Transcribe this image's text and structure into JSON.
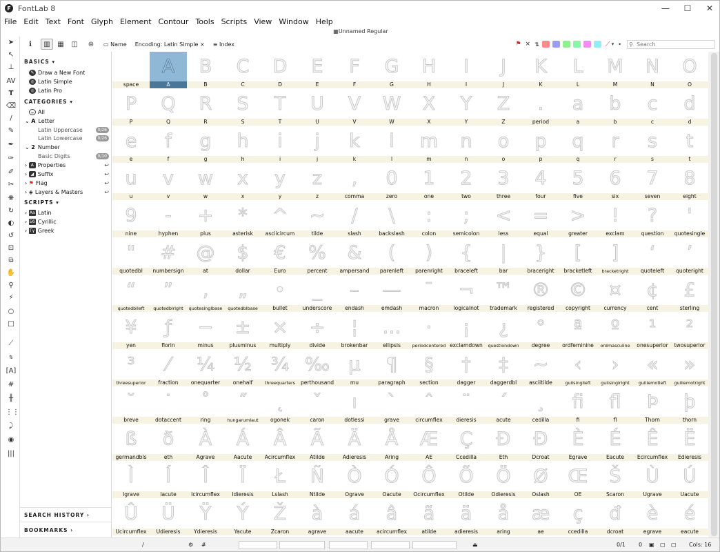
{
  "app": {
    "title": "FontLab 8",
    "logo_letter": "F",
    "doc_title": "Unnamed Regular"
  },
  "window_controls": [
    "—",
    "☐",
    "✕"
  ],
  "menu": [
    "File",
    "Edit",
    "Text",
    "Font",
    "Glyph",
    "Element",
    "Contour",
    "Tools",
    "Scripts",
    "View",
    "Window",
    "Help"
  ],
  "toolbar": {
    "info": "i",
    "name_label": "Name",
    "encoding_label": "Encoding: Latin Simple",
    "close_x": "×",
    "index_label": "Index",
    "search_placeholder": "Search"
  },
  "swatches": [
    "#f78a8a",
    "#9b9bf8",
    "#90f090",
    "#8af5a8",
    "#f18ef1",
    "#8ef0f5"
  ],
  "sidebar": {
    "basics_header": "BASICS",
    "basics": [
      "Draw a New Font",
      "Latin Simple",
      "Latin Pro"
    ],
    "categories_header": "CATEGORIES",
    "categories": [
      {
        "label": "All",
        "badge": ""
      },
      {
        "label": "Letter",
        "badge": ""
      },
      {
        "label": "Latin Uppercase",
        "badge": "0/26"
      },
      {
        "label": "Latin Lowercase",
        "badge": "0/26"
      },
      {
        "label": "Number",
        "badge": ""
      },
      {
        "label": "Basic Digits",
        "badge": "0/10"
      },
      {
        "label": "Properties",
        "badge": ""
      },
      {
        "label": "Suffix",
        "badge": ""
      },
      {
        "label": "Flag",
        "badge": ""
      },
      {
        "label": "Layers & Masters",
        "badge": ""
      }
    ],
    "scripts_header": "SCRIPTS",
    "scripts": [
      "Latin",
      "Cyrillic",
      "Greek"
    ],
    "search_history": "SEARCH HISTORY",
    "bookmarks": "BOOKMARKS"
  },
  "glyphs": [
    [
      "",
      "space"
    ],
    [
      "A",
      "A"
    ],
    [
      "B",
      "B"
    ],
    [
      "C",
      "C"
    ],
    [
      "D",
      "D"
    ],
    [
      "E",
      "E"
    ],
    [
      "F",
      "F"
    ],
    [
      "G",
      "G"
    ],
    [
      "H",
      "H"
    ],
    [
      "I",
      "I"
    ],
    [
      "J",
      "J"
    ],
    [
      "K",
      "K"
    ],
    [
      "L",
      "L"
    ],
    [
      "M",
      "M"
    ],
    [
      "N",
      "N"
    ],
    [
      "O",
      "O"
    ],
    [
      "P",
      "P"
    ],
    [
      "Q",
      "Q"
    ],
    [
      "R",
      "R"
    ],
    [
      "S",
      "S"
    ],
    [
      "T",
      "T"
    ],
    [
      "U",
      "U"
    ],
    [
      "V",
      "V"
    ],
    [
      "W",
      "W"
    ],
    [
      "X",
      "X"
    ],
    [
      "Y",
      "Y"
    ],
    [
      "Z",
      "Z"
    ],
    [
      ".",
      "period"
    ],
    [
      "a",
      "a"
    ],
    [
      "b",
      "b"
    ],
    [
      "c",
      "c"
    ],
    [
      "d",
      "d"
    ],
    [
      "e",
      "e"
    ],
    [
      "f",
      "f"
    ],
    [
      "g",
      "g"
    ],
    [
      "h",
      "h"
    ],
    [
      "i",
      "i"
    ],
    [
      "j",
      "j"
    ],
    [
      "k",
      "k"
    ],
    [
      "l",
      "l"
    ],
    [
      "m",
      "m"
    ],
    [
      "n",
      "n"
    ],
    [
      "o",
      "o"
    ],
    [
      "p",
      "p"
    ],
    [
      "q",
      "q"
    ],
    [
      "r",
      "r"
    ],
    [
      "s",
      "s"
    ],
    [
      "t",
      "t"
    ],
    [
      "u",
      "u"
    ],
    [
      "v",
      "v"
    ],
    [
      "w",
      "w"
    ],
    [
      "x",
      "x"
    ],
    [
      "y",
      "y"
    ],
    [
      "z",
      "z"
    ],
    [
      ",",
      "comma"
    ],
    [
      "0",
      "zero"
    ],
    [
      "1",
      "one"
    ],
    [
      "2",
      "two"
    ],
    [
      "3",
      "three"
    ],
    [
      "4",
      "four"
    ],
    [
      "5",
      "five"
    ],
    [
      "6",
      "six"
    ],
    [
      "7",
      "seven"
    ],
    [
      "8",
      "eight"
    ],
    [
      "9",
      "nine"
    ],
    [
      "-",
      "hyphen"
    ],
    [
      "+",
      "plus"
    ],
    [
      "*",
      "asterisk"
    ],
    [
      "^",
      "asciicircum"
    ],
    [
      "~",
      "tilde"
    ],
    [
      "/",
      "slash"
    ],
    [
      "\\",
      "backslash"
    ],
    [
      ":",
      "colon"
    ],
    [
      ";",
      "semicolon"
    ],
    [
      "<",
      "less"
    ],
    [
      "=",
      "equal"
    ],
    [
      ">",
      "greater"
    ],
    [
      "!",
      "exclam"
    ],
    [
      "?",
      "question"
    ],
    [
      "'",
      "quotesingle"
    ],
    [
      "\"",
      "quotedbl"
    ],
    [
      "#",
      "numbersign"
    ],
    [
      "@",
      "at"
    ],
    [
      "$",
      "dollar"
    ],
    [
      "€",
      "Euro"
    ],
    [
      "%",
      "percent"
    ],
    [
      "&",
      "ampersand"
    ],
    [
      "(",
      "parenleft"
    ],
    [
      ")",
      "parenright"
    ],
    [
      "{",
      "braceleft"
    ],
    [
      "|",
      "bar"
    ],
    [
      "}",
      "braceright"
    ],
    [
      "[",
      "bracketleft"
    ],
    [
      "]",
      "bracketright"
    ],
    [
      "‘",
      "quoteleft"
    ],
    [
      "’",
      "quoteright"
    ],
    [
      "“",
      "quotedblleft"
    ],
    [
      "”",
      "quotedblright"
    ],
    [
      "‚",
      "quotesinglbase"
    ],
    [
      "„",
      "quotedblbase"
    ],
    [
      "•",
      "bullet"
    ],
    [
      "_",
      "underscore"
    ],
    [
      "–",
      "endash"
    ],
    [
      "—",
      "emdash"
    ],
    [
      "¯",
      "macron"
    ],
    [
      "¬",
      "logicalnot"
    ],
    [
      "™",
      "trademark"
    ],
    [
      "®",
      "registered"
    ],
    [
      "©",
      "copyright"
    ],
    [
      "¤",
      "currency"
    ],
    [
      "¢",
      "cent"
    ],
    [
      "£",
      "sterling"
    ],
    [
      "¥",
      "yen"
    ],
    [
      "ƒ",
      "florin"
    ],
    [
      "−",
      "minus"
    ],
    [
      "±",
      "plusminus"
    ],
    [
      "×",
      "multiply"
    ],
    [
      "÷",
      "divide"
    ],
    [
      "¦",
      "brokenbar"
    ],
    [
      "…",
      "ellipsis"
    ],
    [
      "·",
      "periodcentered"
    ],
    [
      "¡",
      "exclamdown"
    ],
    [
      "¿",
      "questiondown"
    ],
    [
      "°",
      "degree"
    ],
    [
      "ª",
      "ordfeminine"
    ],
    [
      "º",
      "ordmasculine"
    ],
    [
      "¹",
      "onesuperior"
    ],
    [
      "²",
      "twosuperior"
    ],
    [
      "³",
      "threesuperior"
    ],
    [
      "⁄",
      "fraction"
    ],
    [
      "¼",
      "onequarter"
    ],
    [
      "½",
      "onehalf"
    ],
    [
      "¾",
      "threequarters"
    ],
    [
      "‰",
      "perthousand"
    ],
    [
      "µ",
      "mu"
    ],
    [
      "¶",
      "paragraph"
    ],
    [
      "§",
      "section"
    ],
    [
      "†",
      "dagger"
    ],
    [
      "‡",
      "daggerdbl"
    ],
    [
      "~",
      "asciitilde"
    ],
    [
      "‹",
      "guilsinglleft"
    ],
    [
      "›",
      "guilsinglright"
    ],
    [
      "«",
      "guillemotleft"
    ],
    [
      "»",
      "guillemotright"
    ],
    [
      "˘",
      "breve"
    ],
    [
      "˙",
      "dotaccent"
    ],
    [
      "˚",
      "ring"
    ],
    [
      "˝",
      "hungarumlaut"
    ],
    [
      "˛",
      "ogonek"
    ],
    [
      "ˇ",
      "caron"
    ],
    [
      "ı",
      "dotlessi"
    ],
    [
      "`",
      "grave"
    ],
    [
      "ˆ",
      "circumflex"
    ],
    [
      "¨",
      "dieresis"
    ],
    [
      "´",
      "acute"
    ],
    [
      "¸",
      "cedilla"
    ],
    [
      "ﬁ",
      "fi"
    ],
    [
      "ﬂ",
      "fl"
    ],
    [
      "Þ",
      "Thorn"
    ],
    [
      "þ",
      "thorn"
    ],
    [
      "ß",
      "germandbls"
    ],
    [
      "ð",
      "eth"
    ],
    [
      "À",
      "Agrave"
    ],
    [
      "Á",
      "Aacute"
    ],
    [
      "Â",
      "Acircumflex"
    ],
    [
      "Ã",
      "Atilde"
    ],
    [
      "Ä",
      "Adieresis"
    ],
    [
      "Å",
      "Aring"
    ],
    [
      "Æ",
      "AE"
    ],
    [
      "Ç",
      "Ccedilla"
    ],
    [
      "Ð",
      "Eth"
    ],
    [
      "Đ",
      "Dcroat"
    ],
    [
      "È",
      "Egrave"
    ],
    [
      "É",
      "Eacute"
    ],
    [
      "Ê",
      "Ecircumflex"
    ],
    [
      "Ë",
      "Edieresis"
    ],
    [
      "Ì",
      "Igrave"
    ],
    [
      "Í",
      "Iacute"
    ],
    [
      "Î",
      "Icircumflex"
    ],
    [
      "Ï",
      "Idieresis"
    ],
    [
      "Ł",
      "Lslash"
    ],
    [
      "Ñ",
      "Ntilde"
    ],
    [
      "Ò",
      "Ograve"
    ],
    [
      "Ó",
      "Oacute"
    ],
    [
      "Ô",
      "Ocircumflex"
    ],
    [
      "Õ",
      "Otilde"
    ],
    [
      "Ö",
      "Odieresis"
    ],
    [
      "Ø",
      "Oslash"
    ],
    [
      "Œ",
      "OE"
    ],
    [
      "Š",
      "Scaron"
    ],
    [
      "Ù",
      "Ugrave"
    ],
    [
      "Ú",
      "Uacute"
    ],
    [
      "Û",
      "Ucircumflex"
    ],
    [
      "Ü",
      "Udieresis"
    ],
    [
      "Ÿ",
      "Ydieresis"
    ],
    [
      "Ý",
      "Yacute"
    ],
    [
      "Ž",
      "Zcaron"
    ],
    [
      "à",
      "agrave"
    ],
    [
      "á",
      "aacute"
    ],
    [
      "â",
      "acircumflex"
    ],
    [
      "ã",
      "atilde"
    ],
    [
      "ä",
      "adieresis"
    ],
    [
      "å",
      "aring"
    ],
    [
      "æ",
      "ae"
    ],
    [
      "ç",
      "ccedilla"
    ],
    [
      "đ",
      "dcroat"
    ],
    [
      "è",
      "egrave"
    ],
    [
      "é",
      "eacute"
    ]
  ],
  "selected_glyph": "A",
  "status": {
    "slash": "/",
    "hash": "#",
    "count": "0/1",
    "zero": "0",
    "cols": "Cols: 16"
  }
}
